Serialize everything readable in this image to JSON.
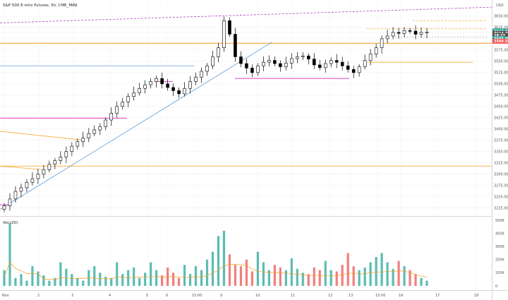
{
  "chart_data": {
    "type": "candlestick",
    "title": "S&P 500 E-mini Futures, 5h, CME_MINI",
    "currency": "USD",
    "price_axis": {
      "ticks": [
        "3650.00",
        "3625.00",
        "3600.00",
        "3575.00",
        "3550.00",
        "3525.00",
        "3500.00",
        "3475.00",
        "3450.00",
        "3425.00",
        "3400.00",
        "3375.00",
        "3350.00",
        "3325.00",
        "3300.00",
        "3275.00",
        "3250.00",
        "3225.00"
      ],
      "range": [
        3212,
        3678
      ]
    },
    "volume_pane": {
      "label": "Vol (20)",
      "ticks": [
        "500K",
        "400K",
        "300K",
        "200K",
        "100K",
        "0"
      ],
      "range": [
        0,
        500000
      ]
    },
    "x_axis": {
      "ticks": [
        "Nov",
        "2",
        "3",
        "4",
        "5",
        "6",
        "15:00",
        "9",
        "10",
        "11",
        "12",
        "13",
        "15:00",
        "16",
        "17",
        "18",
        "19"
      ]
    },
    "badges": [
      {
        "value": "3617.00",
        "color": "#26a69a"
      },
      {
        "value": "3614.25",
        "color": "#555555"
      },
      {
        "value": "28:27",
        "color": "#555555"
      },
      {
        "value": "3605.00",
        "color": "#26a69a"
      },
      {
        "value": "3594.50",
        "color": "#ef5350"
      }
    ],
    "colors": {
      "up": "#26a69a",
      "down": "#ef5350",
      "candle": "#000000",
      "orange": "#f59c1a",
      "blue": "#5b9bd5",
      "magenta": "#e040c8",
      "purple": "#b040c0"
    },
    "close_series": [
      3230,
      3245,
      3262,
      3270,
      3282,
      3290,
      3300,
      3310,
      3322,
      3330,
      3338,
      3350,
      3362,
      3372,
      3380,
      3390,
      3398,
      3405,
      3420,
      3435,
      3450,
      3460,
      3472,
      3480,
      3490,
      3498,
      3505,
      3512,
      3500,
      3492,
      3485,
      3478,
      3490,
      3505,
      3515,
      3528,
      3540,
      3560,
      3580,
      3640,
      3610,
      3560,
      3545,
      3535,
      3525,
      3540,
      3548,
      3552,
      3545,
      3538,
      3546,
      3556,
      3560,
      3562,
      3555,
      3542,
      3536,
      3545,
      3552,
      3548,
      3540,
      3532,
      3525,
      3538,
      3552,
      3566,
      3580,
      3600,
      3606,
      3614,
      3612,
      3618,
      3617,
      3610,
      3614,
      3615
    ],
    "volume_series": [
      120,
      480,
      60,
      90,
      40,
      150,
      110,
      80,
      40,
      60,
      180,
      130,
      90,
      60,
      40,
      120,
      150,
      100,
      70,
      60,
      180,
      90,
      120,
      140,
      60,
      100,
      180,
      120,
      80,
      140,
      100,
      60,
      160,
      90,
      150,
      120,
      200,
      260,
      380,
      420,
      240,
      160,
      150,
      200,
      110,
      260,
      180,
      120,
      160,
      140,
      120,
      210,
      130,
      100,
      90,
      140,
      120,
      190,
      120,
      110,
      160,
      250,
      150,
      120,
      140,
      180,
      220,
      250,
      180,
      130,
      190,
      150,
      120,
      90,
      60,
      40
    ]
  }
}
